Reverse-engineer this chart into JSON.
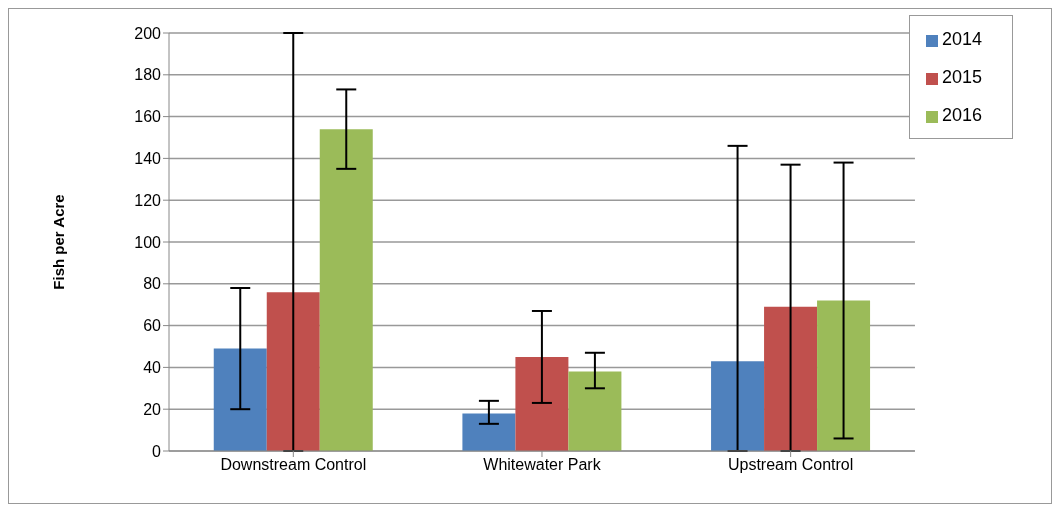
{
  "chart_data": {
    "type": "bar",
    "ylabel": "Fish per Acre",
    "categories": [
      "Downstream Control",
      "Whitewater Park",
      "Upstream Control"
    ],
    "series": [
      {
        "name": "2014",
        "color": "#4f81bd",
        "values": [
          49,
          18,
          43
        ],
        "errors": [
          [
            20,
            78
          ],
          [
            13,
            24
          ],
          [
            0,
            146
          ]
        ]
      },
      {
        "name": "2015",
        "color": "#c0504d",
        "values": [
          76,
          45,
          69
        ],
        "errors": [
          [
            0,
            200
          ],
          [
            23,
            67
          ],
          [
            0,
            137
          ]
        ]
      },
      {
        "name": "2016",
        "color": "#9bbb59",
        "values": [
          154,
          38,
          72
        ],
        "errors": [
          [
            135,
            173
          ],
          [
            30,
            47
          ],
          [
            6,
            138
          ]
        ]
      }
    ],
    "ylim": [
      0,
      200
    ],
    "yticks": [
      0,
      20,
      40,
      60,
      80,
      100,
      120,
      140,
      160,
      180,
      200
    ],
    "grid": "y",
    "legend": "top right"
  }
}
